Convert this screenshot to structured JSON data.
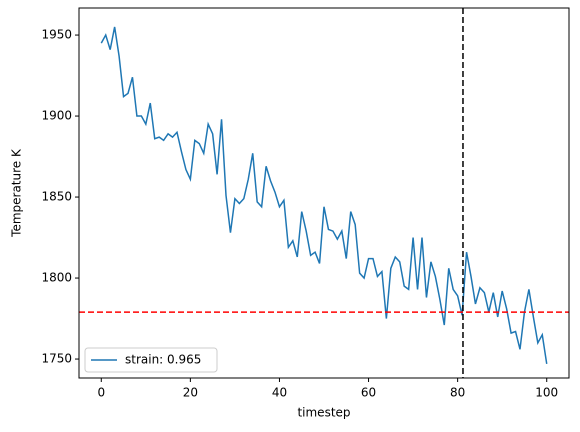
{
  "chart_data": {
    "type": "line",
    "xlabel": "timestep",
    "ylabel": "Temperature K",
    "x": [
      0,
      1,
      2,
      3,
      4,
      5,
      6,
      7,
      8,
      9,
      10,
      11,
      12,
      13,
      14,
      15,
      16,
      17,
      18,
      19,
      20,
      21,
      22,
      23,
      24,
      25,
      26,
      27,
      28,
      29,
      30,
      31,
      32,
      33,
      34,
      35,
      36,
      37,
      38,
      39,
      40,
      41,
      42,
      43,
      44,
      45,
      46,
      47,
      48,
      49,
      50,
      51,
      52,
      53,
      54,
      55,
      56,
      57,
      58,
      59,
      60,
      61,
      62,
      63,
      64,
      65,
      66,
      67,
      68,
      69,
      70,
      71,
      72,
      73,
      74,
      75,
      76,
      77,
      78,
      79,
      80,
      81,
      82,
      83,
      84,
      85,
      86,
      87,
      88,
      89,
      90,
      91,
      92,
      93,
      94,
      95,
      96,
      97,
      98,
      99,
      100
    ],
    "series": [
      {
        "name": "strain: 0.965",
        "color": "#1f77b4",
        "values": [
          1945,
          1950,
          1941,
          1955,
          1937,
          1912,
          1914,
          1924,
          1900,
          1900,
          1895,
          1908,
          1886,
          1887,
          1885,
          1889,
          1887,
          1890,
          1878,
          1867,
          1861,
          1885,
          1883,
          1877,
          1895,
          1889,
          1864,
          1898,
          1851,
          1828,
          1849,
          1846,
          1849,
          1861,
          1877,
          1847,
          1844,
          1869,
          1860,
          1853,
          1844,
          1848,
          1819,
          1823,
          1813,
          1841,
          1829,
          1814,
          1816,
          1809,
          1844,
          1830,
          1829,
          1824,
          1829,
          1812,
          1841,
          1833,
          1803,
          1800,
          1812,
          1812,
          1801,
          1804,
          1775,
          1806,
          1813,
          1810,
          1795,
          1793,
          1825,
          1793,
          1825,
          1788,
          1810,
          1801,
          1787,
          1771,
          1806,
          1793,
          1789,
          1777,
          1816,
          1801,
          1784,
          1794,
          1791,
          1779,
          1791,
          1776,
          1792,
          1781,
          1766,
          1767,
          1756,
          1779,
          1793,
          1776,
          1760,
          1765,
          1747
        ]
      }
    ],
    "reference_lines": [
      {
        "axis": "x",
        "value": 81.2,
        "color": "#000000"
      },
      {
        "axis": "y",
        "value": 1779,
        "color": "#ff0000"
      }
    ],
    "xlim": [
      -5,
      105
    ],
    "ylim": [
      1738.3,
      1966.7
    ],
    "xticks": [
      0,
      20,
      40,
      60,
      80,
      100
    ],
    "yticks": [
      1750,
      1800,
      1850,
      1900,
      1950
    ],
    "legend": "lower left"
  }
}
